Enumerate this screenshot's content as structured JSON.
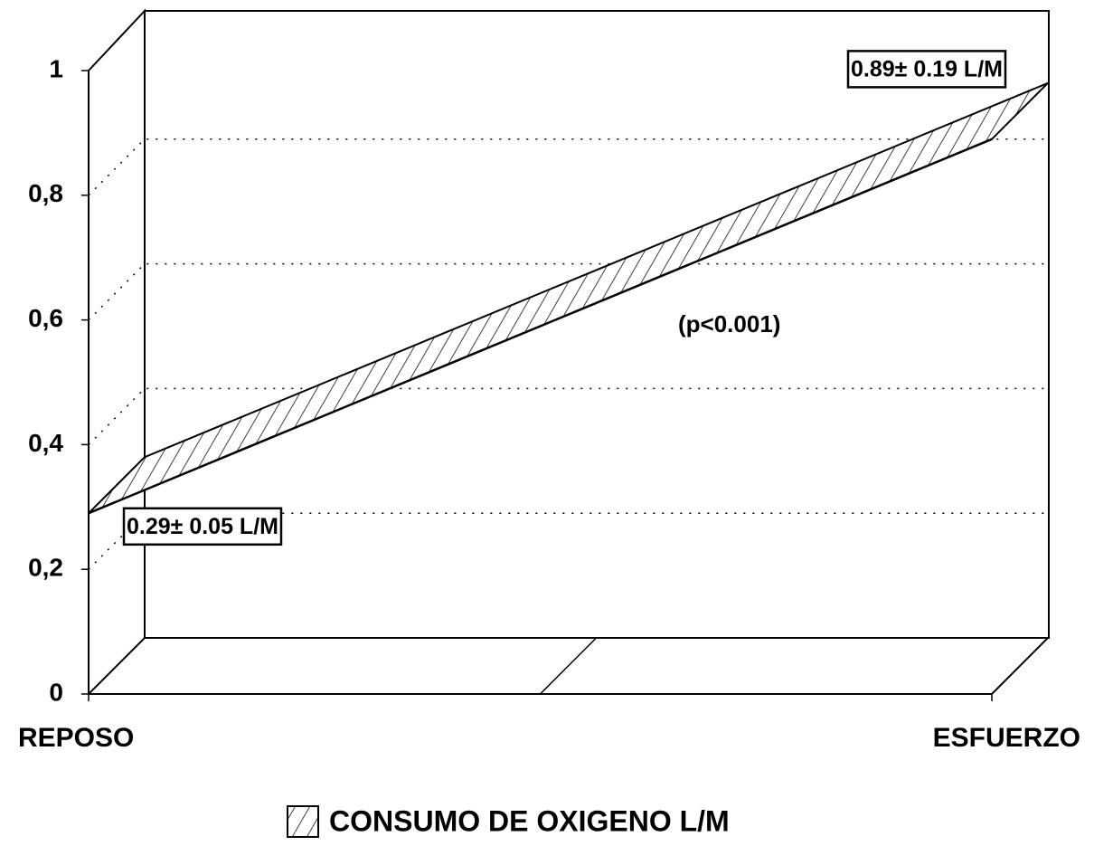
{
  "chart_data": {
    "type": "area3d",
    "categories": [
      "REPOSO",
      "ESFUERZO"
    ],
    "series": [
      {
        "name": "CONSUMO DE OXIGENO L/M",
        "color": "#000000",
        "values": [
          0.29,
          0.89
        ],
        "value_labels": [
          "0.29± 0.05 L/M",
          "0.89± 0.19 L/M"
        ]
      }
    ],
    "ylim": [
      0,
      1
    ],
    "yticks": [
      0,
      {
        "value": 0.2,
        "label": "0,2"
      },
      {
        "value": 0.4,
        "label": "0,4"
      },
      {
        "value": 0.6,
        "label": "0,6"
      },
      {
        "value": 0.8,
        "label": "0,8"
      },
      1
    ],
    "annotations": [
      "(p<0.001)"
    ],
    "grid": true,
    "legend": "bottom"
  }
}
